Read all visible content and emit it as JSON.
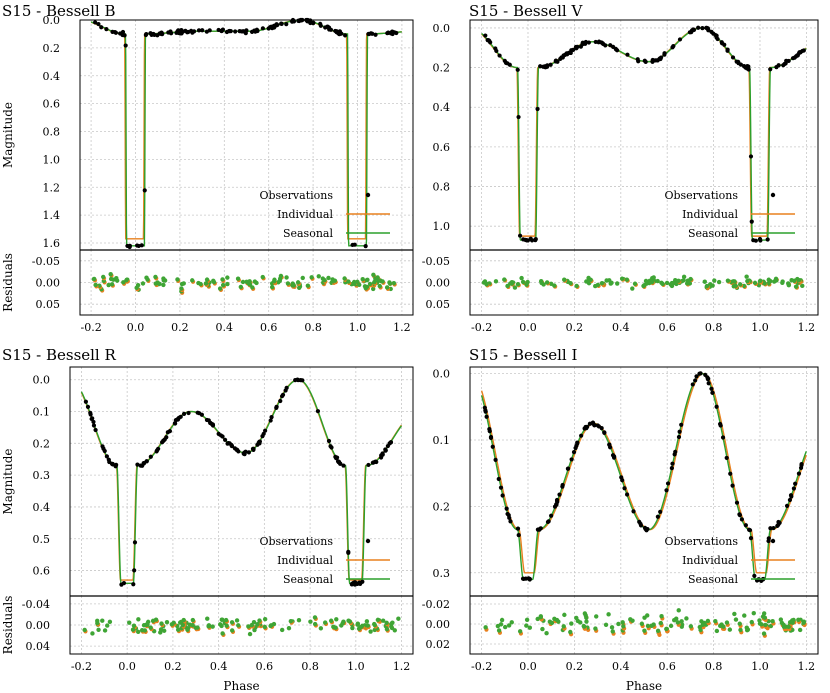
{
  "chart_data": [
    {
      "type": "scatter+line",
      "title": "S15 - Bessell B",
      "band": "B",
      "xlabel": "",
      "ylabel": "Magnitude",
      "residual_ylabel": "Residuals",
      "xlim": [
        -0.25,
        1.25
      ],
      "ylim": [
        0.0,
        1.65
      ],
      "yticks": [
        "0.0",
        "0.2",
        "0.4",
        "0.6",
        "0.8",
        "1.0",
        "1.2",
        "1.4",
        "1.6"
      ],
      "ytick_values": [
        0.0,
        0.2,
        0.4,
        0.6,
        0.8,
        1.0,
        1.2,
        1.4,
        1.6
      ],
      "residual_ylim": [
        -0.075,
        0.075
      ],
      "residual_yticks": [
        "-0.05",
        "0.00",
        "0.05"
      ],
      "residual_ytick_values": [
        -0.05,
        0.0,
        0.05
      ],
      "xticks": [
        "-0.2",
        "0.0",
        "0.2",
        "0.4",
        "0.6",
        "0.8",
        "1.0",
        "1.2"
      ],
      "xtick_values": [
        -0.2,
        0.0,
        0.2,
        0.4,
        0.6,
        0.8,
        1.0,
        1.2
      ],
      "model": {
        "eclipse_half_width": 0.045,
        "ingress_width": 0.005,
        "eclipse_depth": 1.62,
        "plateau": 0.1,
        "max1": 0.08,
        "min1": 0.08,
        "max2": 0.0,
        "ind_shift": -0.004,
        "ind_depth": 1.57
      },
      "residual_amplitude": 0.013,
      "legend": {
        "observations": "Observations",
        "individual": "Individual",
        "seasonal": "Seasonal"
      },
      "colors": {
        "observations": "#000000",
        "individual": "#e8801e",
        "seasonal": "#2ca02c",
        "residual_points": "#3fa535"
      }
    },
    {
      "type": "scatter+line",
      "title": "S15 - Bessell V",
      "band": "V",
      "xlabel": "",
      "ylabel": "",
      "residual_ylabel": "",
      "xlim": [
        -0.25,
        1.25
      ],
      "ylim": [
        -0.04,
        1.12
      ],
      "yticks": [
        "0.0",
        "0.2",
        "0.4",
        "0.6",
        "0.8",
        "1.0"
      ],
      "ytick_values": [
        0.0,
        0.2,
        0.4,
        0.6,
        0.8,
        1.0
      ],
      "residual_ylim": [
        -0.075,
        0.075
      ],
      "residual_yticks": [
        "-0.05",
        "0.00",
        "0.05"
      ],
      "residual_ytick_values": [
        -0.05,
        0.0,
        0.05
      ],
      "xticks": [
        "-0.2",
        "0.0",
        "0.2",
        "0.4",
        "0.6",
        "0.8",
        "1.0",
        "1.2"
      ],
      "xtick_values": [
        -0.2,
        0.0,
        0.2,
        0.4,
        0.6,
        0.8,
        1.0,
        1.2
      ],
      "model": {
        "eclipse_half_width": 0.045,
        "ingress_width": 0.012,
        "eclipse_depth": 1.07,
        "plateau": 0.2,
        "max1": 0.07,
        "min1": 0.17,
        "max2": 0.0,
        "ind_shift": -0.003,
        "ind_depth": 1.05
      },
      "residual_amplitude": 0.009,
      "legend": {
        "observations": "Observations",
        "individual": "Individual",
        "seasonal": "Seasonal"
      },
      "colors": {
        "observations": "#000000",
        "individual": "#e8801e",
        "seasonal": "#2ca02c",
        "residual_points": "#3fa535"
      }
    },
    {
      "type": "scatter+line",
      "title": "S15 - Bessell R",
      "band": "R",
      "xlabel": "Phase",
      "ylabel": "Magnitude",
      "residual_ylabel": "Residuals",
      "xlim": [
        -0.25,
        1.25
      ],
      "ylim": [
        -0.04,
        0.68
      ],
      "yticks": [
        "0.0",
        "0.1",
        "0.2",
        "0.3",
        "0.4",
        "0.5",
        "0.6"
      ],
      "ytick_values": [
        0.0,
        0.1,
        0.2,
        0.3,
        0.4,
        0.5,
        0.6
      ],
      "residual_ylim": [
        -0.055,
        0.055
      ],
      "residual_yticks": [
        "-0.04",
        "0.00",
        "0.04"
      ],
      "residual_ytick_values": [
        -0.04,
        0.0,
        0.04
      ],
      "xticks": [
        "-0.2",
        "0.0",
        "0.2",
        "0.4",
        "0.6",
        "0.8",
        "1.0",
        "1.2"
      ],
      "xtick_values": [
        -0.2,
        0.0,
        0.2,
        0.4,
        0.6,
        0.8,
        1.0,
        1.2
      ],
      "model": {
        "eclipse_half_width": 0.045,
        "ingress_width": 0.018,
        "eclipse_depth": 0.64,
        "plateau": 0.27,
        "max1": 0.1,
        "min1": 0.23,
        "max2": 0.0,
        "ind_shift": -0.002,
        "ind_depth": 0.63
      },
      "residual_amplitude": 0.011,
      "legend": {
        "observations": "Observations",
        "individual": "Individual",
        "seasonal": "Seasonal"
      },
      "colors": {
        "observations": "#000000",
        "individual": "#e8801e",
        "seasonal": "#2ca02c",
        "residual_points": "#3fa535"
      }
    },
    {
      "type": "scatter+line",
      "title": "S15 - Bessell I",
      "band": "I",
      "xlabel": "Phase",
      "ylabel": "",
      "residual_ylabel": "",
      "xlim": [
        -0.25,
        1.25
      ],
      "ylim": [
        -0.01,
        0.335
      ],
      "yticks": [
        "0.0",
        "0.1",
        "0.2",
        "0.3"
      ],
      "ytick_values": [
        0.0,
        0.1,
        0.2,
        0.3
      ],
      "residual_ylim": [
        -0.028,
        0.03
      ],
      "residual_yticks": [
        "-0.02",
        "0.00",
        "0.02"
      ],
      "residual_ytick_values": [
        -0.02,
        0.0,
        0.02
      ],
      "xticks": [
        "-0.2",
        "0.0",
        "0.2",
        "0.4",
        "0.6",
        "0.8",
        "1.0",
        "1.2"
      ],
      "xtick_values": [
        -0.2,
        0.0,
        0.2,
        0.4,
        0.6,
        0.8,
        1.0,
        1.2
      ],
      "model": {
        "eclipse_half_width": 0.045,
        "ingress_width": 0.025,
        "eclipse_depth": 0.31,
        "plateau": 0.235,
        "max1": 0.075,
        "min1": 0.235,
        "max2": 0.0,
        "ind_shift": 0.006,
        "ind_depth": 0.3
      },
      "residual_amplitude": 0.009,
      "legend": {
        "observations": "Observations",
        "individual": "Individual",
        "seasonal": "Seasonal"
      },
      "colors": {
        "observations": "#000000",
        "individual": "#e8801e",
        "seasonal": "#2ca02c",
        "residual_points": "#3fa535"
      }
    }
  ]
}
